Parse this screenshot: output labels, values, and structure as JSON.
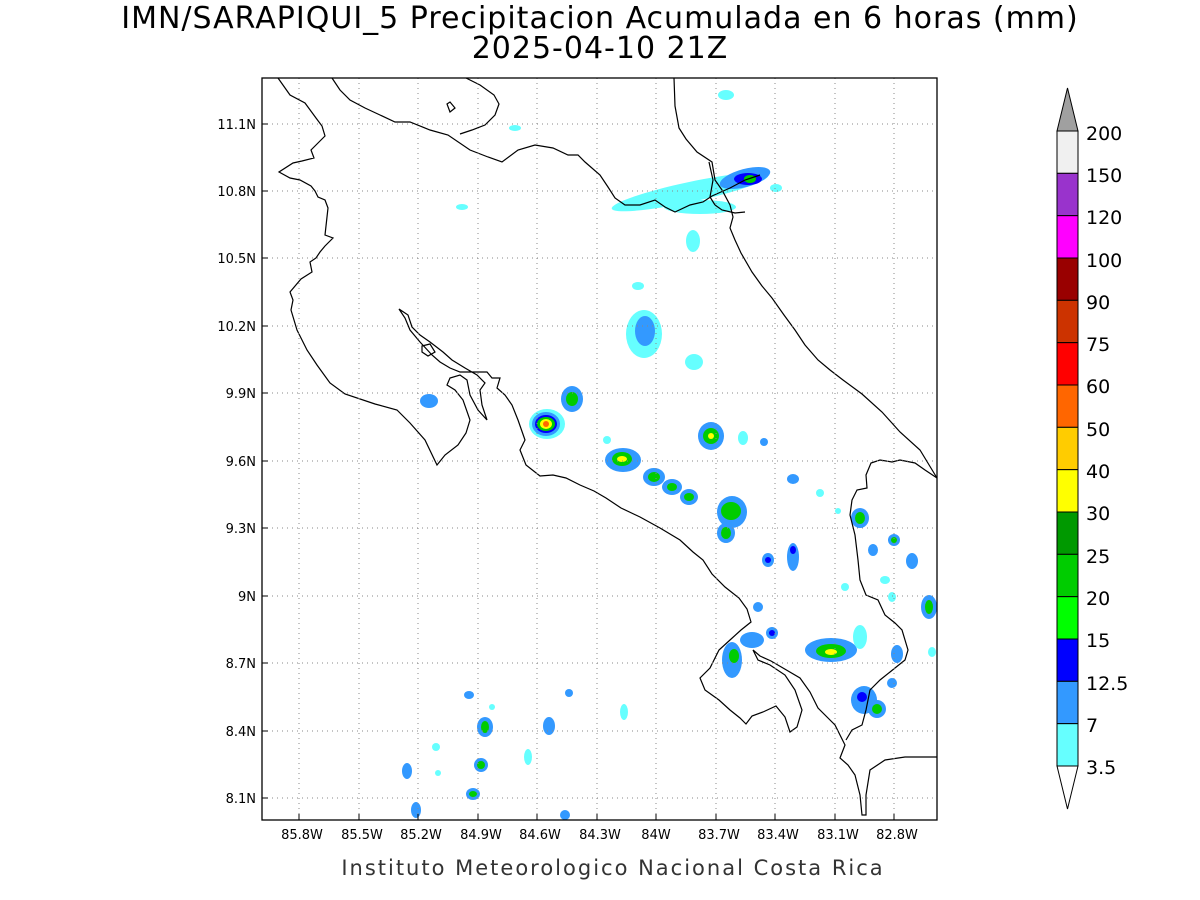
{
  "title_line1": "IMN/SARAPIQUI_5 Precipitacion Acumulada en 6 horas (mm)",
  "title_line2": "2025-04-10 21Z",
  "footer": "Instituto Meteorologico Nacional Costa Rica",
  "map": {
    "lon_range": [
      -86.07,
      -82.6
    ],
    "lat_range": [
      8.0,
      11.3
    ],
    "x_ticks": [
      "85.8W",
      "85.5W",
      "85.2W",
      "84.9W",
      "84.6W",
      "84.3W",
      "84W",
      "83.7W",
      "83.4W",
      "83.1W",
      "82.8W"
    ],
    "y_ticks": [
      "11.1N",
      "10.8N",
      "10.5N",
      "10.2N",
      "9.9N",
      "9.6N",
      "9.3N",
      "9N",
      "8.7N",
      "8.4N",
      "8.1N"
    ],
    "grid": "dotted"
  },
  "legend": {
    "labels": [
      "200",
      "150",
      "120",
      "100",
      "90",
      "75",
      "60",
      "50",
      "40",
      "30",
      "25",
      "20",
      "15",
      "12.5",
      "7",
      "3.5"
    ],
    "colors": [
      "#f0f0f0",
      "#9933cc",
      "#ff00ff",
      "#990000",
      "#cc3300",
      "#ff0000",
      "#ff6600",
      "#ffcc00",
      "#ffff00",
      "#009900",
      "#00cc00",
      "#00ff00",
      "#0000ff",
      "#3399ff",
      "#66ffff"
    ],
    "over_color": "#a0a0a0",
    "under_color": "#ffffff"
  }
}
